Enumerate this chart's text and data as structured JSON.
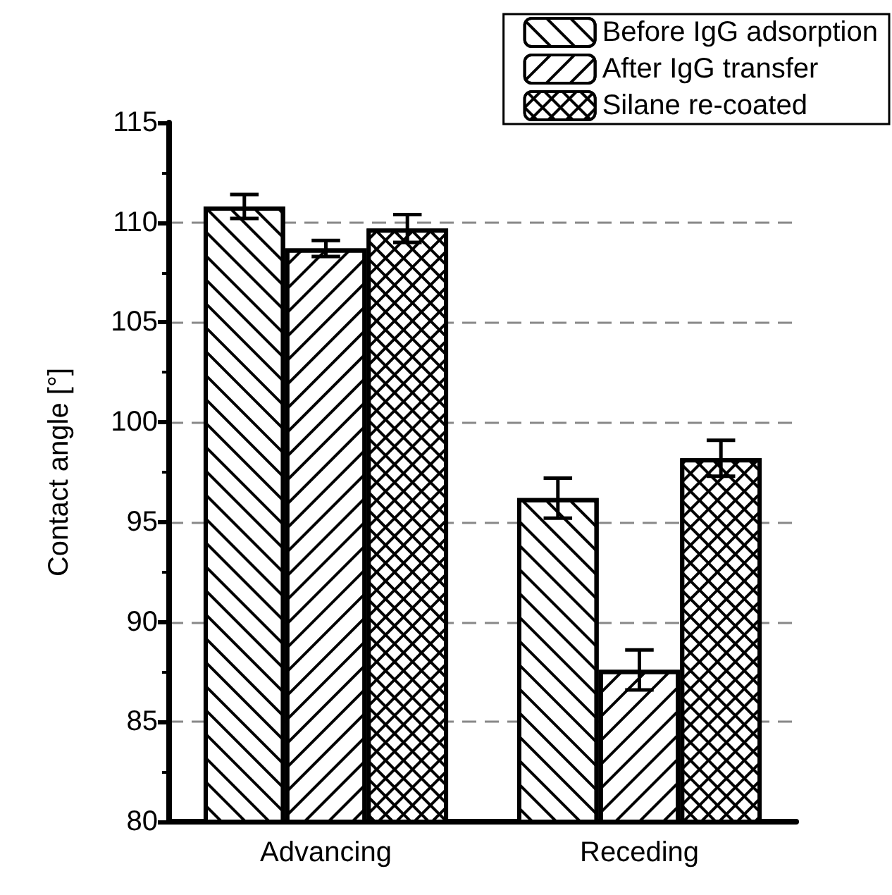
{
  "chart_data": {
    "type": "bar",
    "ylabel": "Contact angle [°]",
    "categories": [
      "Advancing",
      "Receding"
    ],
    "series": [
      {
        "name": "Before IgG adsorption",
        "color": "#000000",
        "values": [
          110.8,
          96.2
        ],
        "errors": [
          0.6,
          1.0
        ]
      },
      {
        "name": "After IgG transfer",
        "color": "#000000",
        "values": [
          108.7,
          87.6
        ],
        "errors": [
          0.4,
          1.0
        ]
      },
      {
        "name": "Silane re-coated",
        "color": "#000000",
        "values": [
          109.7,
          98.2
        ],
        "errors": [
          0.7,
          0.9
        ]
      }
    ],
    "ylim": [
      80,
      115
    ],
    "yticks": [
      80,
      85,
      90,
      95,
      100,
      105,
      110,
      115
    ],
    "grid": "y",
    "legend": "top right"
  }
}
